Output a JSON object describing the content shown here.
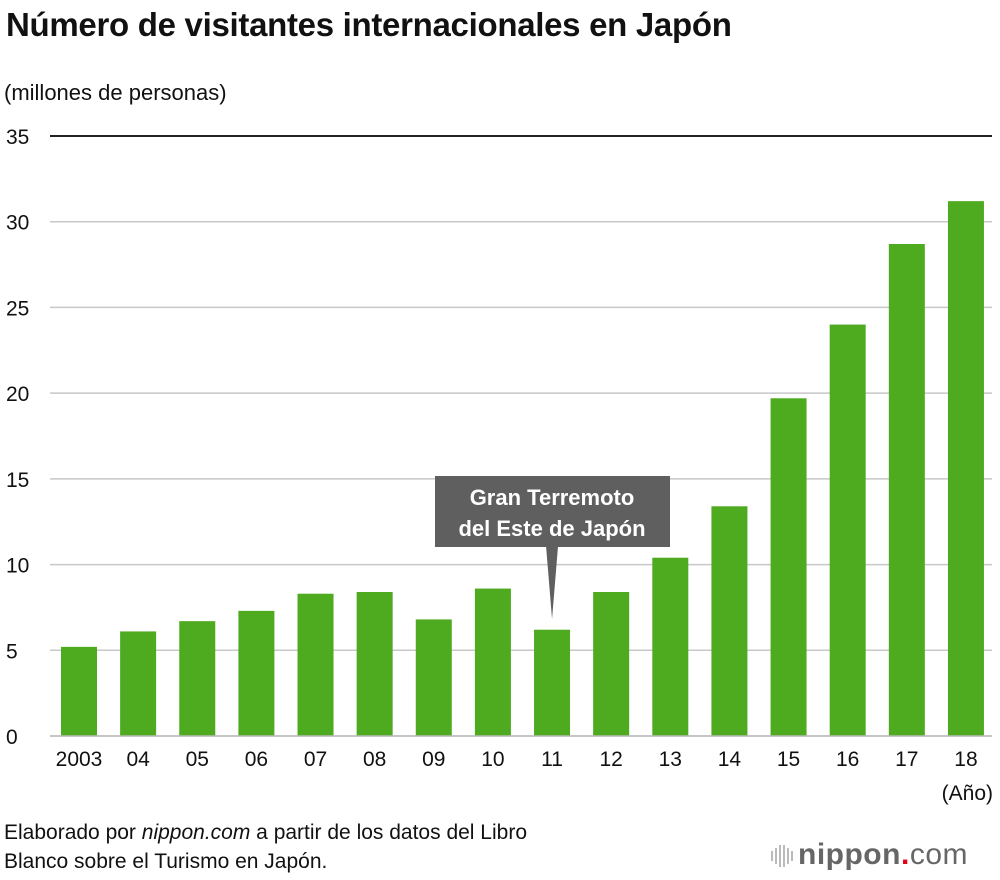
{
  "chart_data": {
    "type": "bar",
    "title": "Número de visitantes internacionales en Japón",
    "ylabel": "(millones de personas)",
    "xlabel": "(Año)",
    "categories": [
      "2003",
      "04",
      "05",
      "06",
      "07",
      "08",
      "09",
      "10",
      "11",
      "12",
      "13",
      "14",
      "15",
      "16",
      "17",
      "18"
    ],
    "values": [
      5.2,
      6.1,
      6.7,
      7.3,
      8.3,
      8.4,
      6.8,
      8.6,
      6.2,
      8.4,
      10.4,
      13.4,
      19.7,
      24.0,
      28.7,
      31.2
    ],
    "ylim": [
      0,
      35
    ],
    "yticks": [
      "0",
      "5",
      "10",
      "15",
      "20",
      "25",
      "30",
      "35"
    ],
    "grid": true,
    "bar_color": "#4eaa1e",
    "annotation": {
      "category": "11",
      "lines": [
        "Gran Terremoto",
        "del Este de Japón"
      ],
      "bg_color": "#5f5f5f"
    }
  },
  "source": {
    "prefix": "Elaborado por ",
    "site": "nippon.com",
    "suffix": " a partir de los datos del Libro",
    "line2": "Blanco sobre el Turismo en Japón."
  },
  "logo": {
    "name": "nippon",
    "dot": ".",
    "tld": "com"
  }
}
